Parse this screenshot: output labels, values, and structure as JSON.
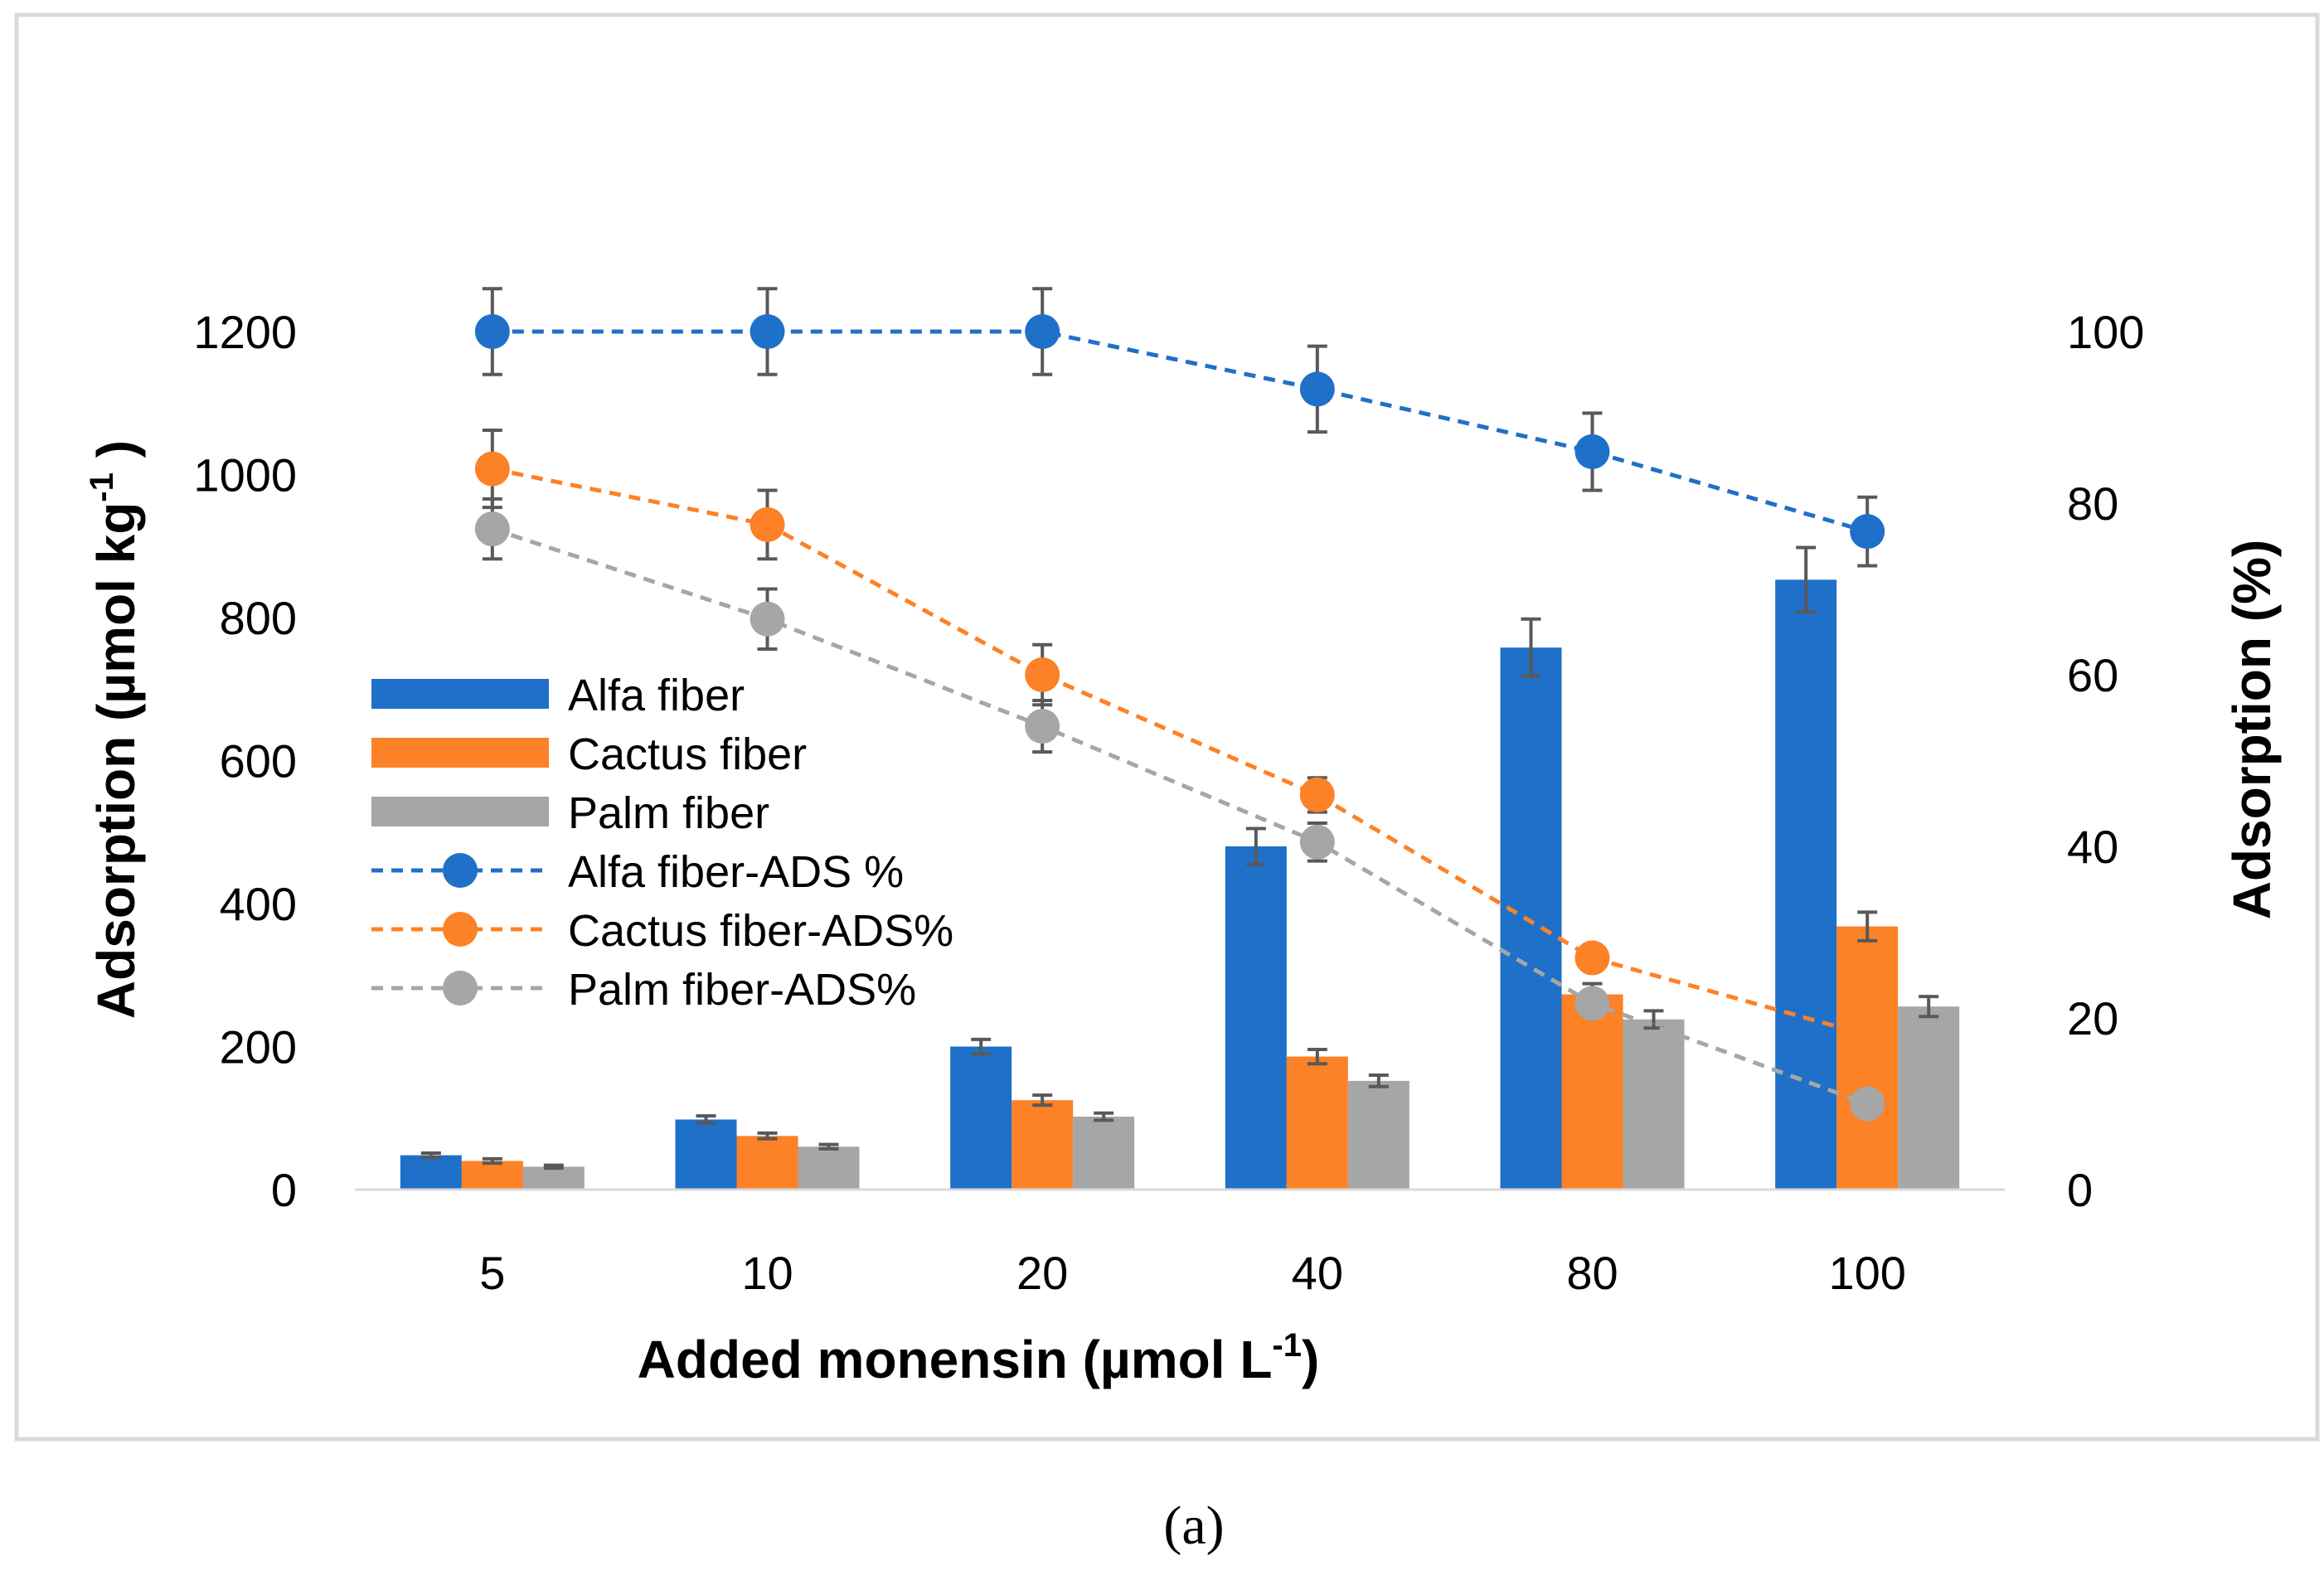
{
  "caption": "(a)",
  "chart_data": {
    "type": "bar",
    "title": "",
    "xlabel": "Added monensin (µmol L",
    "xlabel_sup": "-1",
    "xlabel_end": ")",
    "ylabel": "Adsorption (µmol kg",
    "ylabel_sup": "-1",
    "ylabel_end": " )",
    "y2label": "Adsorption (%)",
    "categories": [
      "5",
      "10",
      "20",
      "40",
      "80",
      "100"
    ],
    "ylim": [
      0,
      1200
    ],
    "yticks": [
      "0",
      "200",
      "400",
      "600",
      "800",
      "1000",
      "1200"
    ],
    "y2lim": [
      0,
      100
    ],
    "y2ticks": [
      "0",
      "20",
      "40",
      "60",
      "80",
      "100"
    ],
    "legend_position": "left-center",
    "grid": false,
    "bar_series": [
      {
        "name": "Alfa fiber",
        "color": "#1f70c8",
        "values": [
          48,
          98,
          200,
          480,
          758,
          853
        ],
        "errors": [
          3,
          5,
          10,
          25,
          40,
          45
        ]
      },
      {
        "name": "Cactus fiber",
        "color": "#fd8126",
        "values": [
          40,
          75,
          125,
          186,
          273,
          368
        ],
        "errors": [
          3,
          4,
          7,
          10,
          15,
          20
        ]
      },
      {
        "name": "Palm fiber",
        "color": "#a6a6a6",
        "values": [
          32,
          60,
          102,
          152,
          238,
          256
        ],
        "errors": [
          2,
          3,
          5,
          8,
          12,
          14
        ]
      }
    ],
    "line_series": [
      {
        "name": "Alfa fiber-ADS %",
        "color": "#1f70c8",
        "values": [
          100,
          100,
          100,
          93.3,
          86,
          76.7
        ],
        "errors": [
          5,
          5,
          5,
          5,
          4.5,
          4
        ]
      },
      {
        "name": "Cactus fiber-ADS%",
        "color": "#fd8126",
        "values": [
          84,
          77.5,
          60,
          46,
          27,
          18
        ],
        "errors": [
          4.5,
          4,
          3.5,
          2,
          1.2,
          1
        ]
      },
      {
        "name": "Palm fiber-ADS%",
        "color": "#a6a6a6",
        "values": [
          77,
          66.5,
          54,
          40.5,
          21.7,
          10
        ],
        "errors": [
          3.5,
          3.5,
          3,
          2.2,
          1.5,
          0.5
        ]
      }
    ]
  }
}
